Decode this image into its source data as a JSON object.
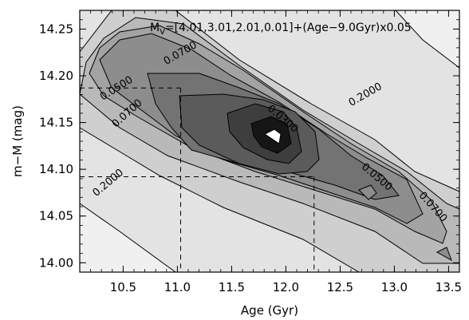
{
  "chart_data": {
    "type": "contour",
    "title": "",
    "xlabel": "Age (Gyr)",
    "ylabel": "m−M (mag)",
    "xlim": [
      10.1,
      13.6
    ],
    "ylim": [
      13.99,
      14.27
    ],
    "xticks": [
      "10.5",
      "11.0",
      "11.5",
      "12.0",
      "12.5",
      "13.0",
      "13.5"
    ],
    "yticks": [
      "14.00",
      "14.05",
      "14.10",
      "14.15",
      "14.20",
      "14.25"
    ],
    "annotation": {
      "prefix": "M",
      "subscript": "V",
      "rest": "=[4.01,3.01,2.01,0.01]+(Age−9.0Gyr)x0.05"
    },
    "contour_labels": [
      "0.0700",
      "0.0500",
      "0.0700",
      "0.0300",
      "0.2000",
      "0.0500",
      "0.2000",
      "0.0700"
    ],
    "contour_levels": [
      0.01,
      0.02,
      0.03,
      0.05,
      0.07,
      0.1,
      0.2
    ],
    "best_fit": {
      "age": 11.9,
      "m_minus_M": 14.13
    },
    "confidence_box": {
      "age_range": [
        11.03,
        12.26
      ],
      "m_minus_M_range": [
        14.092,
        14.187
      ]
    },
    "fill_colors": [
      "#e3e3e3",
      "#cfcfcf",
      "#b9b9b9",
      "#a3a3a3",
      "#8d8d8d",
      "#737373",
      "#5b5b5b",
      "#3e3e3e",
      "#161616",
      "#ffffff"
    ]
  }
}
